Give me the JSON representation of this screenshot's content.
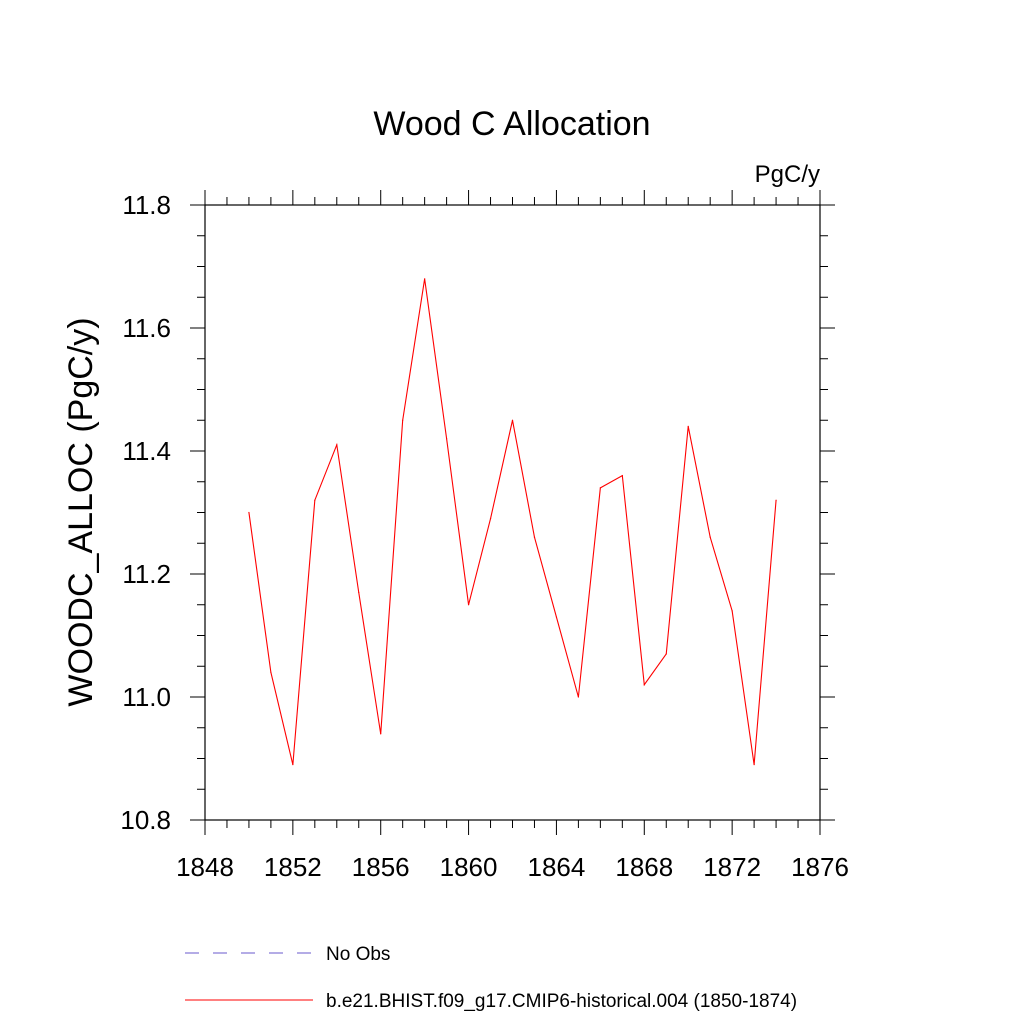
{
  "chart_data": {
    "type": "line",
    "title": "Wood C Allocation",
    "units_label": "PgC/y",
    "ylabel": "WOODC_ALLOC  (PgC/y)",
    "xlabel": "",
    "xlim": [
      1848,
      1876
    ],
    "ylim": [
      10.8,
      11.8
    ],
    "x_ticks": [
      "1848",
      "1852",
      "1856",
      "1860",
      "1864",
      "1868",
      "1872",
      "1876"
    ],
    "y_ticks": [
      "10.8",
      "11.0",
      "11.2",
      "11.4",
      "11.6",
      "11.8"
    ],
    "grid": false,
    "legend_position": "bottom",
    "series": [
      {
        "name": "b.e21.BHIST.f09_g17.CMIP6-historical.004 (1850-1874)",
        "color": "#ff0000",
        "x": [
          1850,
          1851,
          1852,
          1853,
          1854,
          1855,
          1856,
          1857,
          1858,
          1859,
          1860,
          1861,
          1862,
          1863,
          1864,
          1865,
          1866,
          1867,
          1868,
          1869,
          1870,
          1871,
          1872,
          1873,
          1874
        ],
        "values": [
          11.3,
          11.04,
          10.89,
          11.32,
          11.41,
          11.17,
          10.94,
          11.45,
          11.68,
          11.42,
          11.15,
          11.29,
          11.45,
          11.26,
          11.13,
          11.0,
          11.34,
          11.36,
          11.02,
          11.07,
          11.44,
          11.26,
          11.14,
          10.89,
          11.32
        ]
      }
    ],
    "legend": [
      {
        "label": "No Obs",
        "color": "#6a5acd",
        "style": "dashed"
      },
      {
        "label": "b.e21.BHIST.f09_g17.CMIP6-historical.004 (1850-1874)",
        "color": "#ff0000",
        "style": "solid"
      }
    ]
  }
}
